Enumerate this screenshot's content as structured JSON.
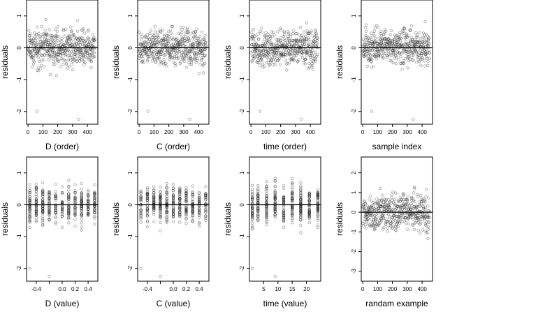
{
  "chart_data": [
    {
      "type": "scatter",
      "xlabel": "D (order)",
      "ylabel": "residuals",
      "xlim": [
        -10,
        470
      ],
      "ylim": [
        -2.4,
        1.5
      ],
      "xticks": [
        0,
        100,
        200,
        300,
        400
      ],
      "xticklabels": [
        "0",
        "100",
        "200",
        "300",
        "400"
      ],
      "yticks": [
        -2,
        -1,
        0,
        1
      ],
      "yticklabels": [
        "-2",
        "-1",
        "0",
        "1"
      ],
      "hline": 0,
      "n_points": 450,
      "x_domain": "index 1-450",
      "residual_summary": {
        "center": 0,
        "typical_range": [
          -1.5,
          1.5
        ],
        "low_outliers": [
          -2.0,
          -2.25
        ]
      }
    },
    {
      "type": "scatter",
      "xlabel": "C (order)",
      "ylabel": "residuals",
      "xlim": [
        -10,
        470
      ],
      "ylim": [
        -2.4,
        1.5
      ],
      "xticks": [
        0,
        100,
        200,
        300,
        400
      ],
      "xticklabels": [
        "0",
        "100",
        "200",
        "300",
        "400"
      ],
      "yticks": [
        -2,
        -1,
        0,
        1
      ],
      "yticklabels": [
        "-2",
        "-1",
        "0",
        "1"
      ],
      "hline": 0,
      "n_points": 450,
      "x_domain": "index 1-450",
      "residual_summary": {
        "center": 0,
        "typical_range": [
          -1.5,
          1.5
        ],
        "low_outliers": [
          -2.0,
          -2.25
        ]
      }
    },
    {
      "type": "scatter",
      "xlabel": "time (order)",
      "ylabel": "residuals",
      "xlim": [
        -10,
        470
      ],
      "ylim": [
        -2.4,
        1.5
      ],
      "xticks": [
        0,
        100,
        200,
        300,
        400
      ],
      "xticklabels": [
        "0",
        "100",
        "200",
        "300",
        "400"
      ],
      "yticks": [
        -2,
        -1,
        0,
        1
      ],
      "yticklabels": [
        "-2",
        "-1",
        "0",
        "1"
      ],
      "hline": 0,
      "n_points": 450,
      "x_domain": "index 1-450",
      "residual_summary": {
        "center": 0,
        "typical_range": [
          -1.5,
          1.5
        ],
        "low_outliers": [
          -2.0,
          -2.25
        ]
      }
    },
    {
      "type": "scatter",
      "xlabel": "sample index",
      "ylabel": "residuals",
      "xlim": [
        -10,
        470
      ],
      "ylim": [
        -2.4,
        1.5
      ],
      "xticks": [
        0,
        100,
        200,
        300,
        400
      ],
      "xticklabels": [
        "0",
        "100",
        "200",
        "300",
        "400"
      ],
      "yticks": [
        -2,
        -1,
        0,
        1
      ],
      "yticklabels": [
        "-2",
        "-1",
        "0",
        "1"
      ],
      "hline": 0,
      "n_points": 450,
      "x_domain": "index 1-450",
      "residual_summary": {
        "center": 0,
        "typical_range": [
          -1.5,
          1.5
        ],
        "low_outliers": [
          -2.0,
          -2.25
        ]
      }
    },
    {
      "type": "scatter",
      "xlabel": "D (value)",
      "ylabel": "residuals",
      "xlim": [
        -0.55,
        0.55
      ],
      "ylim": [
        -2.4,
        1.5
      ],
      "xticks": [
        -0.4,
        -0.2,
        0.0,
        0.2,
        0.4
      ],
      "xticklabels": [
        "-0.4",
        "",
        "0.0",
        "0.2",
        "0.4"
      ],
      "yticks": [
        -2,
        -1,
        0,
        1
      ],
      "yticklabels": [
        "-2",
        "-1",
        "0",
        "1"
      ],
      "hline": 0,
      "n_points": 450,
      "x_values_discrete": [
        -0.5,
        -0.4,
        -0.3,
        -0.2,
        -0.1,
        0.0,
        0.1,
        0.2,
        0.3,
        0.4,
        0.5
      ],
      "residual_summary": {
        "center": 0,
        "typical_range": [
          -1.5,
          1.5
        ],
        "low_outliers": [
          -2.0,
          -2.25
        ]
      }
    },
    {
      "type": "scatter",
      "xlabel": "C (value)",
      "ylabel": "residuals",
      "xlim": [
        -0.55,
        0.55
      ],
      "ylim": [
        -2.4,
        1.5
      ],
      "xticks": [
        -0.4,
        -0.2,
        0.0,
        0.2,
        0.4
      ],
      "xticklabels": [
        "-0.4",
        "",
        "0.0",
        "0.2",
        "0.4"
      ],
      "yticks": [
        -2,
        -1,
        0,
        1
      ],
      "yticklabels": [
        "-2",
        "-1",
        "0",
        "1"
      ],
      "hline": 0,
      "n_points": 450,
      "x_values_discrete": [
        -0.5,
        -0.4,
        -0.3,
        -0.2,
        -0.1,
        0.0,
        0.1,
        0.2,
        0.3,
        0.4,
        0.5
      ],
      "residual_summary": {
        "center": 0,
        "typical_range": [
          -1.5,
          1.5
        ],
        "low_outliers": [
          -2.0,
          -2.25
        ]
      }
    },
    {
      "type": "scatter",
      "xlabel": "time (value)",
      "ylabel": "residuals",
      "xlim": [
        0,
        25
      ],
      "ylim": [
        -2.4,
        1.5
      ],
      "xticks": [
        5,
        10,
        15,
        20
      ],
      "xticklabels": [
        "5",
        "10",
        "15",
        "20"
      ],
      "yticks": [
        -2,
        -1,
        0,
        1
      ],
      "yticklabels": [
        "-2",
        "-1",
        "0",
        "1"
      ],
      "hline": 0,
      "n_points": 450,
      "x_values_discrete": [
        1,
        3,
        6,
        9,
        12,
        15,
        18,
        21,
        24
      ],
      "residual_summary": {
        "center": 0,
        "typical_range": [
          -1.5,
          1.5
        ],
        "low_outliers": [
          -2.0,
          -2.25
        ]
      }
    },
    {
      "type": "scatter",
      "xlabel": "randam example",
      "ylabel": "residuals",
      "xlim": [
        -10,
        470
      ],
      "ylim": [
        -3.5,
        2.8
      ],
      "xticks": [
        0,
        100,
        200,
        300,
        400
      ],
      "xticklabels": [
        "0",
        "100",
        "200",
        "300",
        "400"
      ],
      "yticks": [
        -3,
        -2,
        -1,
        0,
        1,
        2
      ],
      "yticklabels": [
        "-3",
        "-2",
        "-1",
        "0",
        "1",
        "2"
      ],
      "hline": 0,
      "n_points": 450,
      "x_domain": "index 1-450",
      "residual_summary": {
        "center": 0,
        "typical_range": [
          -2.5,
          2.5
        ]
      }
    }
  ]
}
